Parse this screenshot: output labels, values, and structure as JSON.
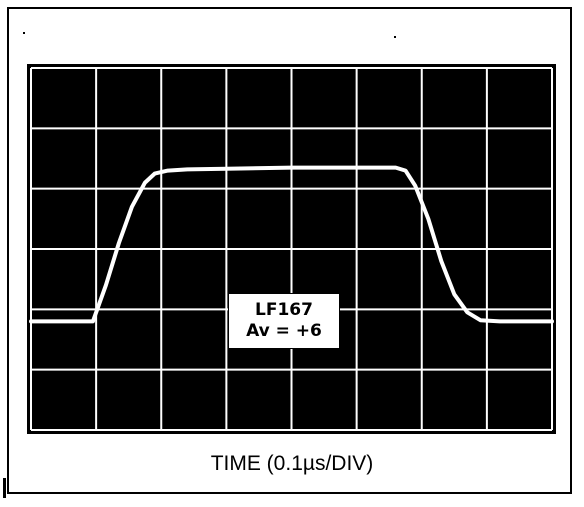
{
  "chart_data": {
    "type": "line",
    "subtype": "oscilloscope-trace",
    "title": "",
    "xlabel": "TIME (0.1µs/DIV)",
    "ylabel": "",
    "grid": true,
    "background": "#000000",
    "trace_color": "#ffffff",
    "grid_color": "#ffffff",
    "x_divisions": 8,
    "y_divisions": 6,
    "xlim": [
      0,
      8
    ],
    "ylim": [
      0,
      6
    ],
    "annotation": {
      "line1": "LF167",
      "line2": "Av = +6"
    },
    "series": [
      {
        "x": [
          0,
          0.95,
          1.15,
          1.35,
          1.55,
          1.75,
          1.9,
          2.1,
          2.4,
          3.0,
          4.0,
          5.0,
          5.6,
          5.75,
          5.9,
          6.1,
          6.3,
          6.5,
          6.7,
          6.9,
          7.2,
          8.0
        ],
        "values": [
          1.8,
          1.8,
          2.4,
          3.1,
          3.7,
          4.1,
          4.25,
          4.3,
          4.32,
          4.33,
          4.35,
          4.35,
          4.35,
          4.3,
          4.05,
          3.5,
          2.8,
          2.25,
          1.95,
          1.82,
          1.8,
          1.8
        ]
      }
    ]
  }
}
